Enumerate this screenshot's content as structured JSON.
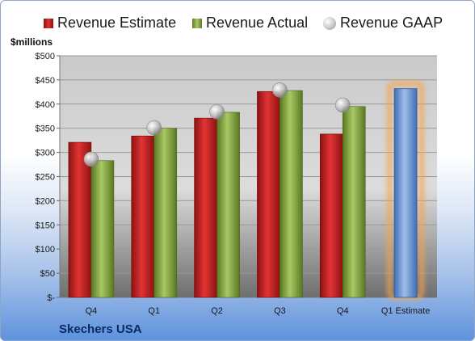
{
  "unit_label": "$millions",
  "company": "Skechers USA",
  "colors": {
    "estimate": "#c42424",
    "actual": "#86a845",
    "forecast": "#6f9bd4",
    "gaap": "#b8b8b8",
    "highlight": "#f7a24a"
  },
  "chart_data": {
    "type": "bar",
    "categories": [
      "Q4",
      "Q1",
      "Q2",
      "Q3",
      "Q4",
      "Q1 Estimate"
    ],
    "series": [
      {
        "name": "Revenue Estimate",
        "values": [
          321,
          334,
          371,
          426,
          338,
          null
        ]
      },
      {
        "name": "Revenue Actual",
        "values": [
          283,
          350,
          383,
          428,
          395,
          432
        ]
      },
      {
        "name": "Revenue GAAP",
        "values": [
          286,
          351,
          384,
          429,
          398,
          null
        ]
      }
    ],
    "ylim": [
      0,
      500
    ],
    "y_ticks": [
      "$-",
      "$50",
      "$100",
      "$150",
      "$200",
      "$250",
      "$300",
      "$350",
      "$400",
      "$450",
      "$500"
    ],
    "grid": true,
    "legend_position": "top",
    "highlighted_category": "Q1 Estimate"
  }
}
